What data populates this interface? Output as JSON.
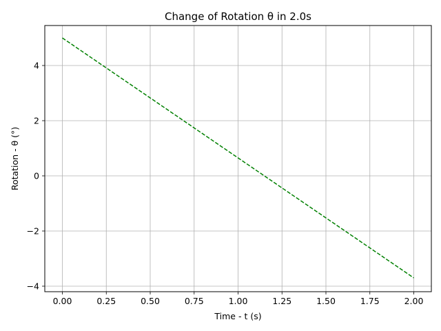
{
  "chart_data": {
    "type": "line",
    "title": "Change of Rotation θ in 2.0s",
    "xlabel": "Time - t (s)",
    "ylabel": "Rotation - θ (°)",
    "xlim": [
      -0.1,
      2.1
    ],
    "ylim": [
      -4.2,
      5.45
    ],
    "grid": true,
    "x_ticks": [
      {
        "value": 0.0,
        "label": "0.00"
      },
      {
        "value": 0.25,
        "label": "0.25"
      },
      {
        "value": 0.5,
        "label": "0.50"
      },
      {
        "value": 0.75,
        "label": "0.75"
      },
      {
        "value": 1.0,
        "label": "1.00"
      },
      {
        "value": 1.25,
        "label": "1.25"
      },
      {
        "value": 1.5,
        "label": "1.50"
      },
      {
        "value": 1.75,
        "label": "1.75"
      },
      {
        "value": 2.0,
        "label": "2.00"
      }
    ],
    "y_ticks": [
      {
        "value": -4,
        "label": "−4"
      },
      {
        "value": -2,
        "label": "−2"
      },
      {
        "value": 0,
        "label": "0"
      },
      {
        "value": 2,
        "label": "2"
      },
      {
        "value": 4,
        "label": "4"
      }
    ],
    "series": [
      {
        "color": "#008000",
        "line_style": "dashed",
        "x": [
          0.0,
          2.0
        ],
        "y": [
          5.0,
          -3.7
        ]
      }
    ]
  },
  "colors": {
    "grid": "#b0b0b0",
    "axes": "#000000",
    "line": "#008000"
  }
}
